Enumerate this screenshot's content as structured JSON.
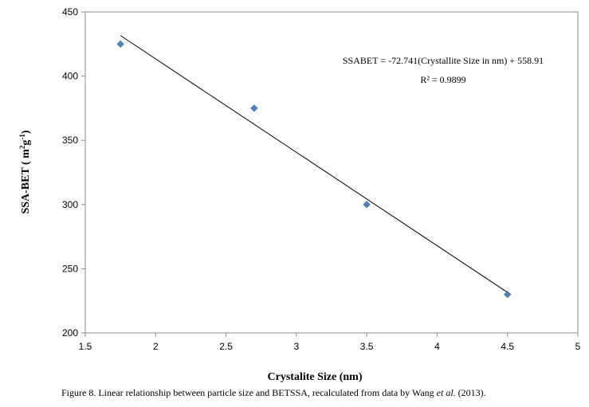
{
  "chart_data": {
    "type": "scatter",
    "title": "",
    "xlabel": "Crystalite Size (nm)",
    "ylabel_main": "SSA-BET ( m",
    "ylabel_sup1": "2",
    "ylabel_mid": "g",
    "ylabel_sup2": "-1",
    "ylabel_end": ")",
    "xlim": [
      1.5,
      5
    ],
    "ylim": [
      200,
      450
    ],
    "x_ticks": [
      1.5,
      2,
      2.5,
      3,
      3.5,
      4,
      4.5,
      5
    ],
    "x_tick_labels": [
      "1.5",
      "2",
      "2.5",
      "3",
      "3.5",
      "4",
      "4.5",
      "5"
    ],
    "y_ticks": [
      200,
      250,
      300,
      350,
      400,
      450
    ],
    "y_tick_labels": [
      "200",
      "250",
      "300",
      "350",
      "400",
      "450"
    ],
    "series": [
      {
        "x": [
          1.75,
          2.7,
          3.5,
          4.5
        ],
        "y": [
          425,
          375,
          300,
          230
        ],
        "color": "#4f81bd",
        "marker": "diamond"
      }
    ],
    "trendline": {
      "slope": -72.741,
      "intercept": 558.91,
      "x_range": [
        1.75,
        4.5
      ],
      "color": "#000000"
    },
    "annotations": {
      "equation": "SSABET = -72.741(Crystallite Size in nm) + 558.91",
      "r_squared": "R² = 0.9899"
    },
    "grid": false,
    "legend": "none"
  },
  "caption": {
    "prefix": "Figure 8. Linear relationship between particle size and BETSSA, recalculated from data by Wang ",
    "etal": "et al.",
    "suffix": " (2013)."
  }
}
